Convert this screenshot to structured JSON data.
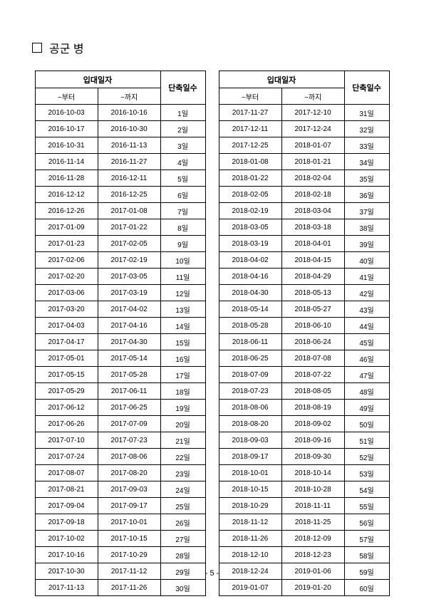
{
  "title": "공군 병",
  "headers": {
    "enlist_group": "입대일자",
    "reduction": "단축일수",
    "from": "~부터",
    "to": "~까지"
  },
  "page_number": "- 5 -",
  "table1": {
    "rows": [
      [
        "2016-10-03",
        "2016-10-16",
        "1일"
      ],
      [
        "2016-10-17",
        "2016-10-30",
        "2일"
      ],
      [
        "2016-10-31",
        "2016-11-13",
        "3일"
      ],
      [
        "2016-11-14",
        "2016-11-27",
        "4일"
      ],
      [
        "2016-11-28",
        "2016-12-11",
        "5일"
      ],
      [
        "2016-12-12",
        "2016-12-25",
        "6일"
      ],
      [
        "2016-12-26",
        "2017-01-08",
        "7일"
      ],
      [
        "2017-01-09",
        "2017-01-22",
        "8일"
      ],
      [
        "2017-01-23",
        "2017-02-05",
        "9일"
      ],
      [
        "2017-02-06",
        "2017-02-19",
        "10일"
      ],
      [
        "2017-02-20",
        "2017-03-05",
        "11일"
      ],
      [
        "2017-03-06",
        "2017-03-19",
        "12일"
      ],
      [
        "2017-03-20",
        "2017-04-02",
        "13일"
      ],
      [
        "2017-04-03",
        "2017-04-16",
        "14일"
      ],
      [
        "2017-04-17",
        "2017-04-30",
        "15일"
      ],
      [
        "2017-05-01",
        "2017-05-14",
        "16일"
      ],
      [
        "2017-05-15",
        "2017-05-28",
        "17일"
      ],
      [
        "2017-05-29",
        "2017-06-11",
        "18일"
      ],
      [
        "2017-06-12",
        "2017-06-25",
        "19일"
      ],
      [
        "2017-06-26",
        "2017-07-09",
        "20일"
      ],
      [
        "2017-07-10",
        "2017-07-23",
        "21일"
      ],
      [
        "2017-07-24",
        "2017-08-06",
        "22일"
      ],
      [
        "2017-08-07",
        "2017-08-20",
        "23일"
      ],
      [
        "2017-08-21",
        "2017-09-03",
        "24일"
      ],
      [
        "2017-09-04",
        "2017-09-17",
        "25일"
      ],
      [
        "2017-09-18",
        "2017-10-01",
        "26일"
      ],
      [
        "2017-10-02",
        "2017-10-15",
        "27일"
      ],
      [
        "2017-10-16",
        "2017-10-29",
        "28일"
      ],
      [
        "2017-10-30",
        "2017-11-12",
        "29일"
      ],
      [
        "2017-11-13",
        "2017-11-26",
        "30일"
      ]
    ]
  },
  "table2": {
    "rows": [
      [
        "2017-11-27",
        "2017-12-10",
        "31일"
      ],
      [
        "2017-12-11",
        "2017-12-24",
        "32일"
      ],
      [
        "2017-12-25",
        "2018-01-07",
        "33일"
      ],
      [
        "2018-01-08",
        "2018-01-21",
        "34일"
      ],
      [
        "2018-01-22",
        "2018-02-04",
        "35일"
      ],
      [
        "2018-02-05",
        "2018-02-18",
        "36일"
      ],
      [
        "2018-02-19",
        "2018-03-04",
        "37일"
      ],
      [
        "2018-03-05",
        "2018-03-18",
        "38일"
      ],
      [
        "2018-03-19",
        "2018-04-01",
        "39일"
      ],
      [
        "2018-04-02",
        "2018-04-15",
        "40일"
      ],
      [
        "2018-04-16",
        "2018-04-29",
        "41일"
      ],
      [
        "2018-04-30",
        "2018-05-13",
        "42일"
      ],
      [
        "2018-05-14",
        "2018-05-27",
        "43일"
      ],
      [
        "2018-05-28",
        "2018-06-10",
        "44일"
      ],
      [
        "2018-06-11",
        "2018-06-24",
        "45일"
      ],
      [
        "2018-06-25",
        "2018-07-08",
        "46일"
      ],
      [
        "2018-07-09",
        "2018-07-22",
        "47일"
      ],
      [
        "2018-07-23",
        "2018-08-05",
        "48일"
      ],
      [
        "2018-08-06",
        "2018-08-19",
        "49일"
      ],
      [
        "2018-08-20",
        "2018-09-02",
        "50일"
      ],
      [
        "2018-09-03",
        "2018-09-16",
        "51일"
      ],
      [
        "2018-09-17",
        "2018-09-30",
        "52일"
      ],
      [
        "2018-10-01",
        "2018-10-14",
        "53일"
      ],
      [
        "2018-10-15",
        "2018-10-28",
        "54일"
      ],
      [
        "2018-10-29",
        "2018-11-11",
        "55일"
      ],
      [
        "2018-11-12",
        "2018-11-25",
        "56일"
      ],
      [
        "2018-11-26",
        "2018-12-09",
        "57일"
      ],
      [
        "2018-12-10",
        "2018-12-23",
        "58일"
      ],
      [
        "2018-12-24",
        "2019-01-06",
        "59일"
      ],
      [
        "2019-01-07",
        "2019-01-20",
        "60일"
      ]
    ]
  }
}
